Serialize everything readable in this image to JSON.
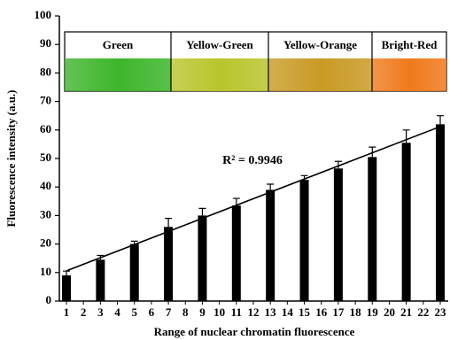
{
  "chart_data": {
    "type": "bar",
    "x_label": "Range of nuclear chromatin fluorescence",
    "y_label": "Fluorescence intensity (a.u.)",
    "categories": [
      "1",
      "2",
      "3",
      "4",
      "5",
      "6",
      "7",
      "8",
      "9",
      "10",
      "11",
      "12",
      "13",
      "14",
      "15",
      "16",
      "17",
      "18",
      "19",
      "20",
      "21",
      "22",
      "23"
    ],
    "values": [
      9,
      null,
      14.5,
      null,
      20,
      null,
      26,
      null,
      30,
      null,
      33.5,
      null,
      39,
      null,
      42.5,
      null,
      46.5,
      null,
      50.5,
      null,
      55.5,
      null,
      62
    ],
    "errors": [
      1.5,
      null,
      1.5,
      null,
      1,
      null,
      3,
      null,
      2.5,
      null,
      2.5,
      null,
      2,
      null,
      1.5,
      null,
      2.5,
      null,
      3.5,
      null,
      4.5,
      null,
      3
    ],
    "color": "#000000",
    "trendline": {
      "x": [
        1,
        23
      ],
      "values": [
        10.6,
        61.2
      ]
    },
    "annotation": "R² = 0.9946",
    "color_bands": [
      {
        "label": "Green",
        "color": "#3db52b"
      },
      {
        "label": "Yellow-Green",
        "color": "#b9c52c"
      },
      {
        "label": "Yellow-Orange",
        "color": "#c99a24"
      },
      {
        "label": "Bright-Red",
        "color": "#f07a1c"
      }
    ],
    "ylim": [
      0,
      100
    ],
    "yticks": [
      0,
      10,
      20,
      30,
      40,
      50,
      60,
      70,
      80,
      90,
      100
    ]
  }
}
